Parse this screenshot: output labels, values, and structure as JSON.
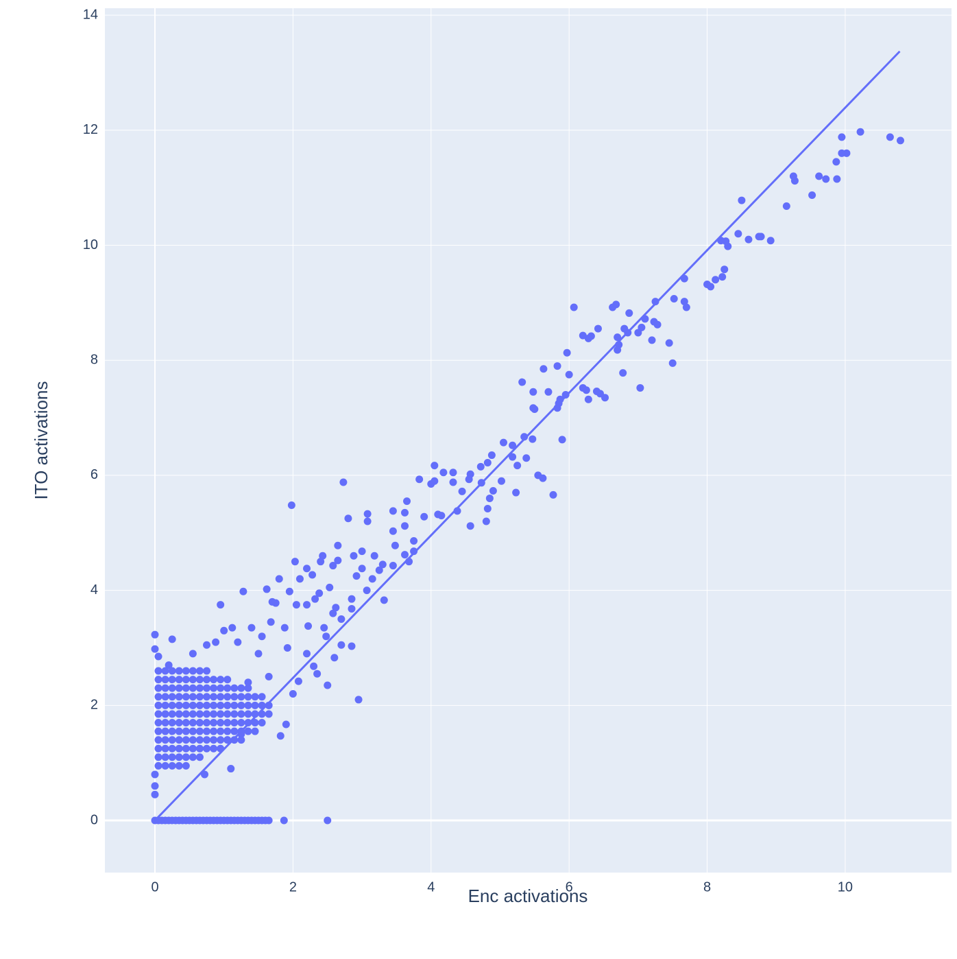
{
  "chart_data": {
    "type": "scatter",
    "xlabel": "Enc activations",
    "ylabel": "ITO activations",
    "xlim": [
      -0.725,
      11.54
    ],
    "ylim": [
      -0.906,
      14.12
    ],
    "xticks": [
      0,
      2,
      4,
      6,
      8,
      10
    ],
    "yticks": [
      0,
      2,
      4,
      6,
      8,
      10,
      12,
      14
    ],
    "grid": true,
    "series": [
      {
        "color": "#636efa",
        "mode": "markers",
        "x": [
          10.8,
          10.65,
          10.22,
          10.02,
          9.95,
          9.95,
          9.87,
          9.88,
          9.72,
          9.62,
          9.52,
          9.27,
          9.25,
          9.15,
          8.92,
          8.78,
          8.75,
          8.6,
          8.5,
          8.45,
          8.3,
          8.27,
          8.2,
          8.25,
          8.22,
          8.12,
          8.05,
          8,
          7.7,
          7.67,
          7.67,
          7.52,
          7.5,
          7.45,
          7.28,
          7.25,
          7.23,
          7.2,
          7.1,
          7.05,
          7.0,
          7.03,
          6.87,
          6.85,
          6.8,
          6.78,
          6.72,
          6.7,
          6.7,
          6.68,
          6.63,
          6.52,
          6.45,
          6.4,
          6.42,
          6.32,
          6.28,
          6.28,
          6.25,
          6.2,
          6.2,
          6.07,
          6.0,
          5.97,
          5.95,
          5.9,
          5.87,
          5.85,
          5.83,
          5.83,
          5.77,
          5.7,
          5.63,
          5.62,
          5.55,
          5.5,
          5.48,
          5.48,
          5.47,
          5.38,
          5.35,
          5.32,
          5.25,
          5.23,
          5.18,
          5.18,
          5.05,
          5.02,
          4.9,
          4.88,
          4.85,
          4.82,
          4.82,
          4.8,
          4.73,
          4.72,
          4.57,
          4.55,
          4.57,
          4.45,
          4.38,
          4.32,
          4.32,
          4.18,
          4.15,
          4.1,
          4.05,
          4.05,
          4.0,
          3.9,
          3.83,
          3.75,
          3.75,
          3.68,
          3.65,
          3.62,
          3.62,
          3.62,
          3.48,
          3.45,
          3.45,
          3.45,
          3.32,
          3.3,
          3.25,
          3.18,
          3.15,
          3.08,
          3.08,
          3.07,
          3.0,
          3.0,
          2.95,
          2.92,
          2.88,
          2.85,
          2.85,
          2.85,
          2.8,
          2.73,
          2.7,
          2.7,
          2.65,
          2.65,
          2.62,
          2.6,
          2.58,
          2.58,
          2.5,
          2.53,
          2.48,
          2.45,
          2.43,
          2.4,
          2.38,
          2.35,
          2.32,
          2.3,
          2.28,
          2.22,
          2.2,
          2.2,
          2.2,
          2.1,
          2.08,
          2.05,
          2.03,
          2.0,
          1.98,
          1.95,
          1.92,
          1.9,
          1.88,
          1.82,
          1.8,
          1.75,
          1.7,
          1.68,
          1.65,
          1.62,
          1.55,
          1.5,
          1.4,
          1.35,
          1.28,
          1.25,
          1.2,
          1.12,
          1.1,
          1.05,
          1.0,
          0.95,
          0.88,
          0.75,
          0.72,
          0.55,
          0.25,
          0.2,
          0.05,
          0,
          0,
          0,
          0,
          0,
          0.05,
          0.15,
          0.25,
          0.35,
          0.45,
          0.05,
          0.15,
          0.25,
          0.35,
          0.45,
          0.55,
          0.65,
          0.05,
          0.15,
          0.25,
          0.35,
          0.45,
          0.55,
          0.65,
          0.75,
          0.85,
          0.95,
          0.05,
          0.15,
          0.25,
          0.35,
          0.45,
          0.55,
          0.65,
          0.75,
          0.85,
          0.95,
          1.05,
          1.15,
          1.25,
          0.05,
          0.15,
          0.25,
          0.35,
          0.45,
          0.55,
          0.65,
          0.75,
          0.85,
          0.95,
          1.05,
          1.15,
          1.25,
          1.35,
          1.45,
          0.05,
          0.15,
          0.25,
          0.35,
          0.45,
          0.55,
          0.65,
          0.75,
          0.85,
          0.95,
          1.05,
          1.15,
          1.25,
          1.35,
          1.45,
          1.55,
          0.05,
          0.15,
          0.25,
          0.35,
          0.45,
          0.55,
          0.65,
          0.75,
          0.85,
          0.95,
          1.05,
          1.15,
          1.25,
          1.35,
          1.45,
          1.55,
          1.65,
          0.05,
          0.15,
          0.25,
          0.35,
          0.45,
          0.55,
          0.65,
          0.75,
          0.85,
          0.95,
          1.05,
          1.15,
          1.25,
          1.35,
          1.45,
          1.55,
          1.65,
          0.05,
          0.15,
          0.25,
          0.35,
          0.45,
          0.55,
          0.65,
          0.75,
          0.85,
          0.95,
          1.05,
          1.15,
          1.25,
          1.35,
          1.45,
          1.55,
          0.05,
          0.15,
          0.25,
          0.35,
          0.45,
          0.55,
          0.65,
          0.75,
          0.85,
          0.95,
          1.05,
          1.15,
          1.25,
          1.35,
          0.05,
          0.15,
          0.25,
          0.35,
          0.45,
          0.55,
          0.65,
          0.75,
          0.85,
          0.95,
          1.05,
          0.05,
          0.15,
          0.25,
          0.35,
          0.45,
          0.55,
          0.65,
          0.75,
          0,
          0.05,
          0.1,
          0.15,
          0.2,
          0.25,
          0.3,
          0.35,
          0.4,
          0.45,
          0.5,
          0.55,
          0.6,
          0.65,
          0.7,
          0.75,
          0.8,
          0.85,
          0.9,
          0.95,
          1.0,
          1.05,
          1.1,
          1.15,
          1.2,
          1.25,
          1.3,
          1.35,
          1.4,
          1.45,
          1.5,
          1.55,
          1.6,
          1.65,
          1.87,
          2.5
        ],
        "values": [
          11.82,
          11.88,
          11.97,
          11.6,
          11.88,
          11.6,
          11.45,
          11.15,
          11.15,
          11.2,
          10.87,
          11.12,
          11.2,
          10.68,
          10.08,
          10.15,
          10.15,
          10.1,
          10.78,
          10.2,
          9.98,
          10.07,
          10.08,
          9.58,
          9.45,
          9.4,
          9.28,
          9.32,
          8.92,
          9.02,
          9.42,
          9.07,
          7.95,
          8.3,
          8.62,
          9.02,
          8.67,
          8.35,
          8.72,
          8.57,
          8.48,
          7.52,
          8.82,
          8.48,
          8.55,
          7.78,
          8.27,
          8.4,
          8.18,
          8.97,
          8.92,
          7.35,
          7.42,
          7.46,
          8.55,
          8.42,
          8.38,
          7.32,
          7.48,
          8.43,
          7.52,
          8.92,
          7.75,
          8.13,
          7.4,
          6.62,
          7.32,
          7.25,
          7.17,
          7.9,
          5.66,
          7.45,
          7.85,
          5.95,
          6.0,
          7.15,
          7.17,
          7.45,
          6.63,
          6.3,
          6.67,
          7.62,
          6.17,
          5.7,
          6.32,
          6.52,
          6.57,
          5.9,
          5.73,
          6.35,
          5.6,
          6.22,
          5.42,
          5.2,
          5.87,
          6.15,
          5.12,
          5.93,
          6.02,
          5.72,
          5.38,
          5.88,
          6.05,
          6.05,
          5.3,
          5.32,
          6.17,
          5.9,
          5.85,
          5.28,
          5.93,
          4.68,
          4.86,
          4.5,
          5.55,
          5.35,
          5.12,
          4.62,
          4.78,
          5.38,
          5.03,
          4.43,
          3.83,
          4.45,
          4.35,
          4.6,
          4.2,
          5.2,
          5.33,
          4.0,
          4.68,
          4.38,
          2.1,
          4.25,
          4.6,
          3.03,
          3.68,
          3.85,
          5.25,
          5.88,
          3.05,
          3.5,
          4.78,
          4.52,
          3.7,
          2.83,
          4.43,
          3.6,
          2.35,
          4.05,
          3.2,
          3.35,
          4.6,
          4.5,
          3.95,
          2.55,
          3.85,
          2.68,
          4.27,
          3.38,
          3.75,
          2.9,
          4.38,
          4.2,
          2.42,
          3.75,
          4.5,
          2.2,
          5.48,
          3.98,
          3.0,
          1.67,
          3.35,
          1.47,
          4.2,
          3.78,
          3.8,
          3.45,
          2.5,
          4.02,
          3.2,
          2.9,
          3.35,
          2.4,
          3.98,
          1.5,
          3.1,
          3.35,
          0.9,
          1.4,
          3.3,
          3.75,
          3.1,
          3.05,
          0.8,
          2.9,
          3.15,
          2.7,
          2.85,
          3.23,
          2.98,
          0.8,
          0.6,
          0.45,
          0.95,
          0.95,
          0.95,
          0.95,
          0.95,
          1.1,
          1.1,
          1.1,
          1.1,
          1.1,
          1.1,
          1.1,
          1.25,
          1.25,
          1.25,
          1.25,
          1.25,
          1.25,
          1.25,
          1.25,
          1.25,
          1.25,
          1.4,
          1.4,
          1.4,
          1.4,
          1.4,
          1.4,
          1.4,
          1.4,
          1.4,
          1.4,
          1.4,
          1.4,
          1.4,
          1.55,
          1.55,
          1.55,
          1.55,
          1.55,
          1.55,
          1.55,
          1.55,
          1.55,
          1.55,
          1.55,
          1.55,
          1.55,
          1.55,
          1.55,
          1.7,
          1.7,
          1.7,
          1.7,
          1.7,
          1.7,
          1.7,
          1.7,
          1.7,
          1.7,
          1.7,
          1.7,
          1.7,
          1.7,
          1.7,
          1.7,
          1.85,
          1.85,
          1.85,
          1.85,
          1.85,
          1.85,
          1.85,
          1.85,
          1.85,
          1.85,
          1.85,
          1.85,
          1.85,
          1.85,
          1.85,
          1.85,
          1.85,
          2,
          2,
          2,
          2,
          2,
          2,
          2,
          2,
          2,
          2,
          2,
          2,
          2,
          2,
          2,
          2,
          2,
          2.15,
          2.15,
          2.15,
          2.15,
          2.15,
          2.15,
          2.15,
          2.15,
          2.15,
          2.15,
          2.15,
          2.15,
          2.15,
          2.15,
          2.15,
          2.15,
          2.3,
          2.3,
          2.3,
          2.3,
          2.3,
          2.3,
          2.3,
          2.3,
          2.3,
          2.3,
          2.3,
          2.3,
          2.3,
          2.3,
          2.45,
          2.45,
          2.45,
          2.45,
          2.45,
          2.45,
          2.45,
          2.45,
          2.45,
          2.45,
          2.45,
          2.6,
          2.6,
          2.6,
          2.6,
          2.6,
          2.6,
          2.6,
          2.6,
          0,
          0,
          0,
          0,
          0,
          0,
          0,
          0,
          0,
          0,
          0,
          0,
          0,
          0,
          0,
          0,
          0,
          0,
          0,
          0,
          0,
          0,
          0,
          0,
          0,
          0,
          0,
          0,
          0,
          0,
          0,
          0,
          0,
          0,
          0,
          0
        ]
      },
      {
        "color": "#636efa",
        "mode": "lines",
        "x": [
          0,
          10.79
        ],
        "values": [
          0,
          13.37
        ]
      }
    ]
  }
}
